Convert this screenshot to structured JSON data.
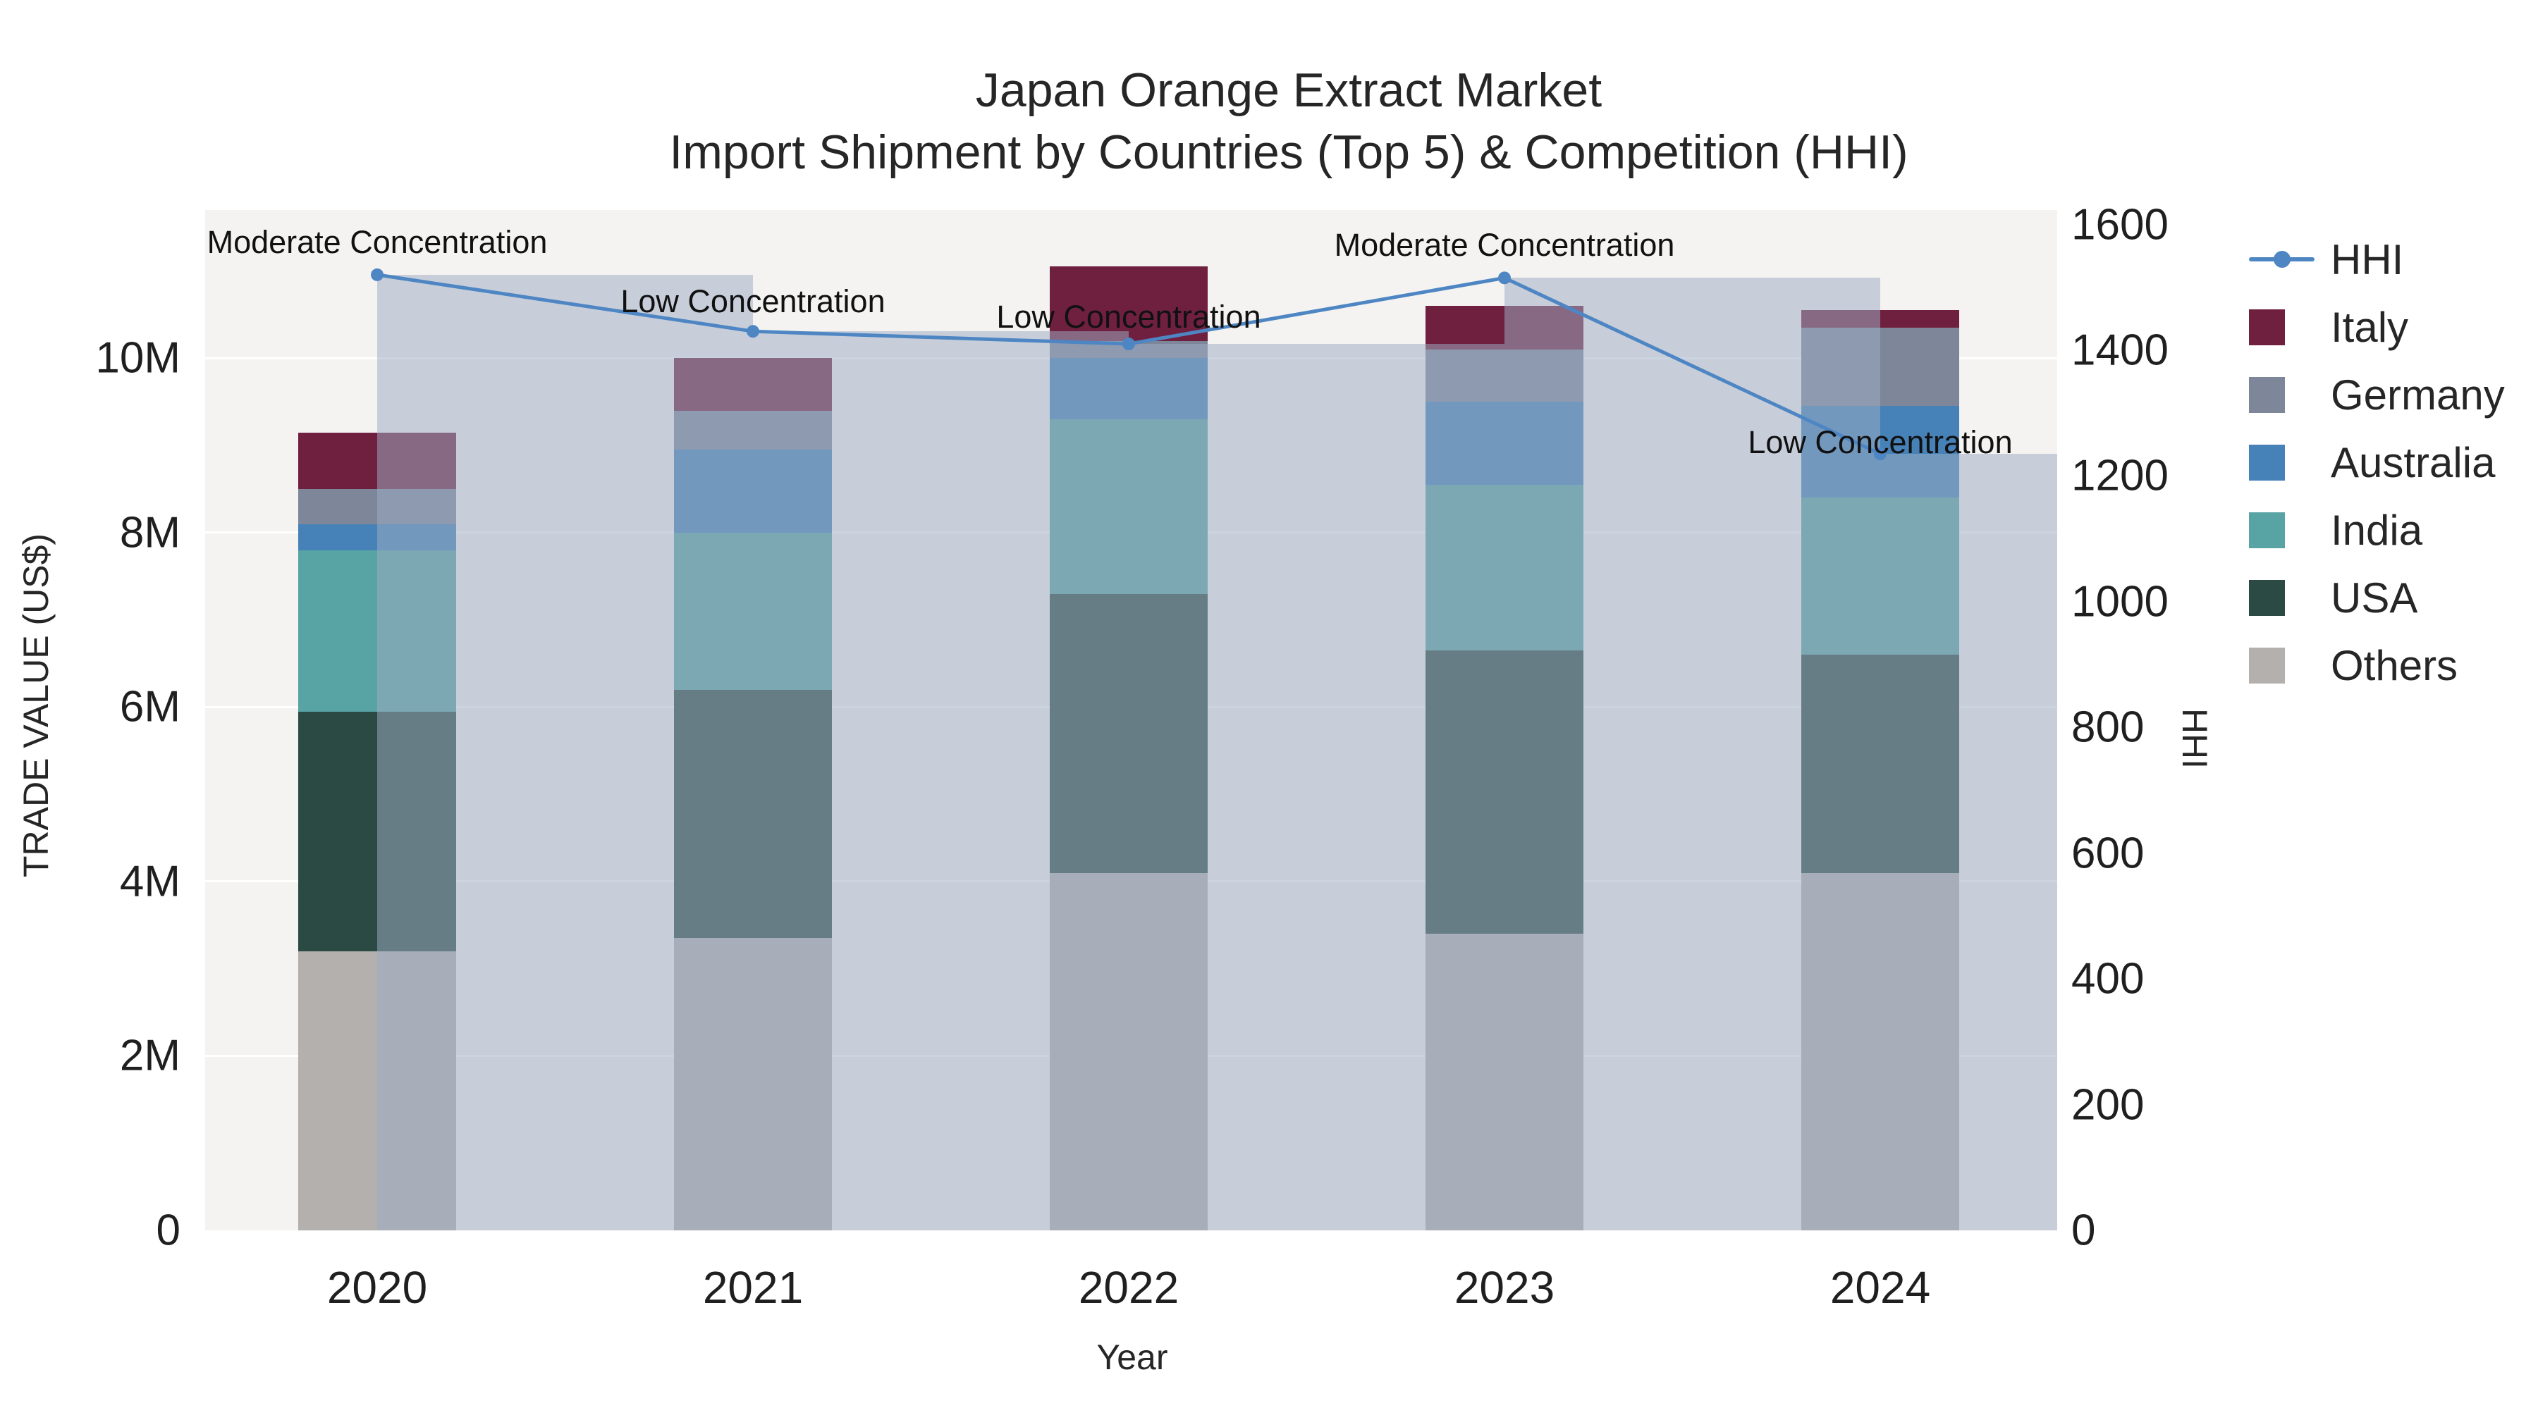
{
  "title": {
    "line1": "Japan Orange Extract Market",
    "line2": "Import Shipment by Countries (Top 5) & Competition (HHI)"
  },
  "axes": {
    "left": {
      "title": "TRADE VALUE (US$)",
      "tick_labels": [
        "0",
        "2M",
        "4M",
        "6M",
        "8M",
        "10M"
      ],
      "tick_values": [
        0,
        2,
        4,
        6,
        8,
        10
      ]
    },
    "right": {
      "title": "HHI",
      "tick_labels": [
        "0",
        "200",
        "400",
        "600",
        "800",
        "1000",
        "1200",
        "1400",
        "1600"
      ],
      "tick_values": [
        0,
        200,
        400,
        600,
        800,
        1000,
        1200,
        1400,
        1600
      ]
    },
    "x": {
      "title": "Year"
    }
  },
  "chart_data": {
    "type": "bar",
    "subtype": "stacked country bars (left axis, US$ millions) + HHI line and translucent HHI bars (right axis)",
    "categories": [
      "2020",
      "2021",
      "2022",
      "2023",
      "2024"
    ],
    "ylim_left_musd": [
      0,
      11.7
    ],
    "ylim_right_hhi": [
      0,
      1623
    ],
    "series": [
      {
        "name": "Italy",
        "color": "#70203f",
        "values_musd": [
          0.65,
          0.6,
          0.85,
          0.5,
          0.2
        ]
      },
      {
        "name": "Germany",
        "color": "#7d8799",
        "values_musd": [
          0.4,
          0.45,
          0.2,
          0.6,
          0.9
        ]
      },
      {
        "name": "Australia",
        "color": "#4682b8",
        "values_musd": [
          0.3,
          0.95,
          0.7,
          0.95,
          1.05
        ]
      },
      {
        "name": "India",
        "color": "#58a3a3",
        "values_musd": [
          1.85,
          1.8,
          2.0,
          1.9,
          1.8
        ]
      },
      {
        "name": "USA",
        "color": "#2b4a44",
        "values_musd": [
          2.75,
          2.85,
          3.2,
          3.25,
          2.5
        ]
      },
      {
        "name": "Others",
        "color": "#b3b0ad",
        "values_musd": [
          3.2,
          3.35,
          4.1,
          3.4,
          4.1
        ]
      }
    ],
    "line": {
      "name": "HHI",
      "color": "#4e86c4",
      "overlay_bar_color": "rgba(158,173,195,0.52)",
      "values": [
        1520,
        1430,
        1410,
        1515,
        1235
      ]
    },
    "annotations": [
      {
        "x_index": 0,
        "text": "Moderate Concentration",
        "dy": -46
      },
      {
        "x_index": 1,
        "text": "Low Concentration",
        "dy": -42
      },
      {
        "x_index": 2,
        "text": "Low Concentration",
        "dy": -38
      },
      {
        "x_index": 3,
        "text": "Moderate Concentration",
        "dy": -46
      },
      {
        "x_index": 4,
        "text": "Low Concentration",
        "dy": -16
      }
    ]
  }
}
